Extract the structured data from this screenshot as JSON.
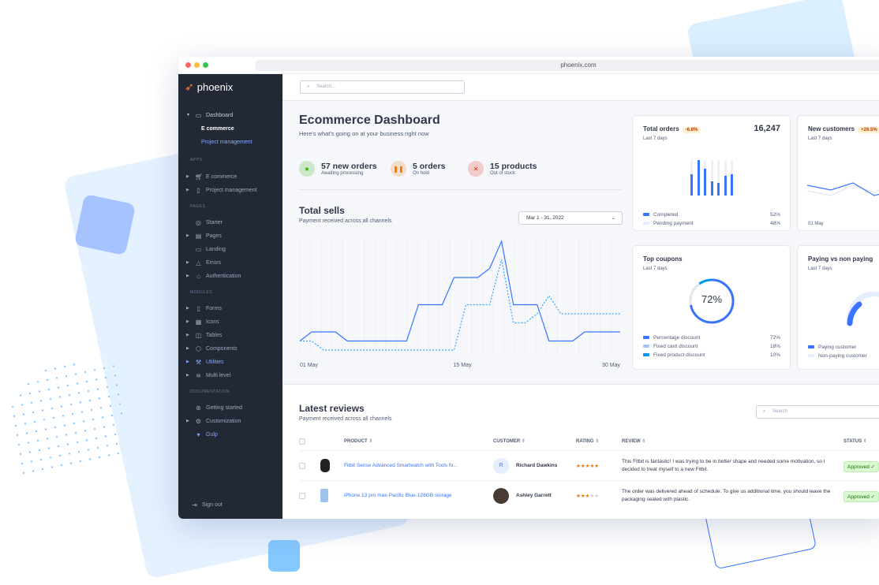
{
  "browser": {
    "url": "phoenix.com"
  },
  "sidebar": {
    "brand": "phoenix",
    "dashboard": {
      "label": "Dashboard",
      "children": [
        "E commerce",
        "Project management"
      ]
    },
    "sections": [
      {
        "title": "APPS",
        "items": [
          {
            "label": "E commerce",
            "icon": "cart-icon"
          },
          {
            "label": "Project management",
            "icon": "clipboard-icon"
          }
        ]
      },
      {
        "title": "PAGES",
        "items": [
          {
            "label": "Starter",
            "icon": "compass-icon"
          },
          {
            "label": "Pages",
            "icon": "layout-icon"
          },
          {
            "label": "Landing",
            "icon": "monitor-icon"
          },
          {
            "label": "Errors",
            "icon": "alert-triangle-icon"
          },
          {
            "label": "Authentication",
            "icon": "lock-icon"
          }
        ]
      },
      {
        "title": "MODULES",
        "items": [
          {
            "label": "Forms",
            "icon": "file-icon"
          },
          {
            "label": "Icons",
            "icon": "grid-icon"
          },
          {
            "label": "Tables",
            "icon": "columns-icon"
          },
          {
            "label": "Components",
            "icon": "package-icon"
          },
          {
            "label": "Utilities",
            "icon": "tool-icon"
          },
          {
            "label": "Multi level",
            "icon": "layers-icon"
          }
        ]
      },
      {
        "title": "DOCUMENTATION",
        "items": [
          {
            "label": "Getting started",
            "icon": "life-buoy-icon"
          },
          {
            "label": "Customization",
            "icon": "settings-icon"
          },
          {
            "label": "Gulp",
            "icon": "gulp-icon"
          }
        ]
      }
    ],
    "signout": "Sign out"
  },
  "header": {
    "search_placeholder": "Search..."
  },
  "page": {
    "title": "Ecommerce Dashboard",
    "subtitle": "Here's what's going on at your business right now"
  },
  "stats": [
    {
      "value": "57 new orders",
      "label": "Awaiting processing",
      "color": "#25b003"
    },
    {
      "value": "5 orders",
      "label": "On hold",
      "color": "#e5780b"
    },
    {
      "value": "15 products",
      "label": "Out of stock",
      "color": "#ec1f00"
    }
  ],
  "total_sells": {
    "title": "Total sells",
    "subtitle": "Payment received across all channels",
    "date_range": "Mar 1 - 31, 2022"
  },
  "chart_data": {
    "type": "line",
    "x_ticks": [
      "01 May",
      "15 May",
      "30 May"
    ],
    "series": [
      {
        "style": "solid",
        "color": "#3874ff",
        "values": [
          1,
          2,
          2,
          2,
          1,
          1,
          1,
          1,
          1,
          1,
          5,
          5,
          5,
          8,
          8,
          8,
          9,
          12,
          5,
          5,
          5,
          1,
          1,
          1,
          2,
          2,
          2,
          2
        ]
      },
      {
        "style": "dashed",
        "color": "#38a5ff",
        "values": [
          1,
          1,
          0,
          0,
          0,
          0,
          0,
          0,
          0,
          0,
          0,
          0,
          0,
          0,
          5,
          5,
          5,
          10,
          3,
          3,
          4,
          6,
          4,
          4,
          4,
          4,
          4,
          4
        ]
      }
    ]
  },
  "total_orders": {
    "title": "Total orders",
    "badge": "-6.8%",
    "value": "16,247",
    "period": "Last 7 days",
    "bars": [
      0.6,
      1,
      0.75,
      0.4,
      0.35,
      0.55,
      0.6
    ],
    "legend": [
      {
        "label": "Completed",
        "value": "52%",
        "color": "#3874ff"
      },
      {
        "label": "Pending payment",
        "value": "48%",
        "color": "#e5edff"
      }
    ]
  },
  "new_customers": {
    "title": "New customers",
    "badge": "+26.5%",
    "period": "Last 7 days",
    "x_tick": "01 May"
  },
  "top_coupons": {
    "title": "Top coupons",
    "period": "Last 7 days",
    "center": "72%",
    "legend": [
      {
        "label": "Percentage discount",
        "value": "72%",
        "color": "#3874ff"
      },
      {
        "label": "Fixed card discount",
        "value": "18%",
        "color": "#a6c2ff"
      },
      {
        "label": "Fixed product discount",
        "value": "10%",
        "color": "#0097eb"
      }
    ]
  },
  "paying": {
    "title": "Paying vs non paying",
    "period": "Last 7 days",
    "legend": [
      {
        "label": "Paying customer",
        "color": "#3874ff"
      },
      {
        "label": "Non-paying customer",
        "color": "#e5edff"
      }
    ]
  },
  "reviews": {
    "title": "Latest reviews",
    "subtitle": "Payment received across all channels",
    "search_placeholder": "Search",
    "columns": [
      "PRODUCT",
      "CUSTOMER",
      "RATING",
      "REVIEW",
      "STATUS"
    ],
    "rows": [
      {
        "product": "Fitbit Sense Advanced Smartwatch with Tools fo...",
        "customer": "Richard Dawkins",
        "initial": "R",
        "rating": 5,
        "stars": "★★★★★",
        "review": "This Fitbit is fantastic! I was trying to be in better shape and needed some motivation, so I decided to treat myself to a new Fitbit.",
        "status": "Approved ✓"
      },
      {
        "product": "iPhone 13 pro max-Pacific Blue-128GB storage",
        "customer": "Ashley Garrett",
        "rating": 3,
        "stars": "★★★",
        "stars_empty": "★★",
        "review": "The order was delivered ahead of schedule. To give us additional time, you should leave the packaging sealed with plastic.",
        "status": "Approved ✓"
      }
    ]
  }
}
